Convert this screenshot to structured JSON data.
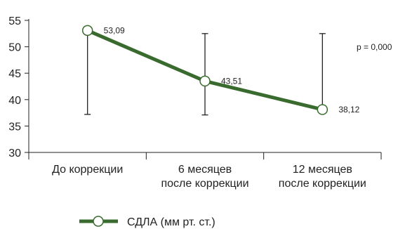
{
  "chart_data": {
    "type": "line",
    "categories": [
      [
        "До коррекции"
      ],
      [
        "6 месяцев",
        "после коррекции"
      ],
      [
        "12 месяцев",
        "после коррекции"
      ]
    ],
    "series": [
      {
        "name": "СДЛА (мм рт. ст.)",
        "values": [
          53.09,
          43.51,
          38.12
        ],
        "value_labels": [
          "53,09",
          "43,51",
          "38,12"
        ],
        "error_low": [
          37.2,
          37.1,
          37.8
        ],
        "error_high": [
          53.1,
          52.5,
          52.5
        ]
      }
    ],
    "ylim": [
      30,
      55
    ],
    "yticks": [
      "30",
      "35",
      "40",
      "45",
      "50",
      "55"
    ],
    "annotation": "p = 0,000",
    "line_color": "#3a6b2e",
    "grid": false,
    "legend_position": "bottom-center"
  }
}
